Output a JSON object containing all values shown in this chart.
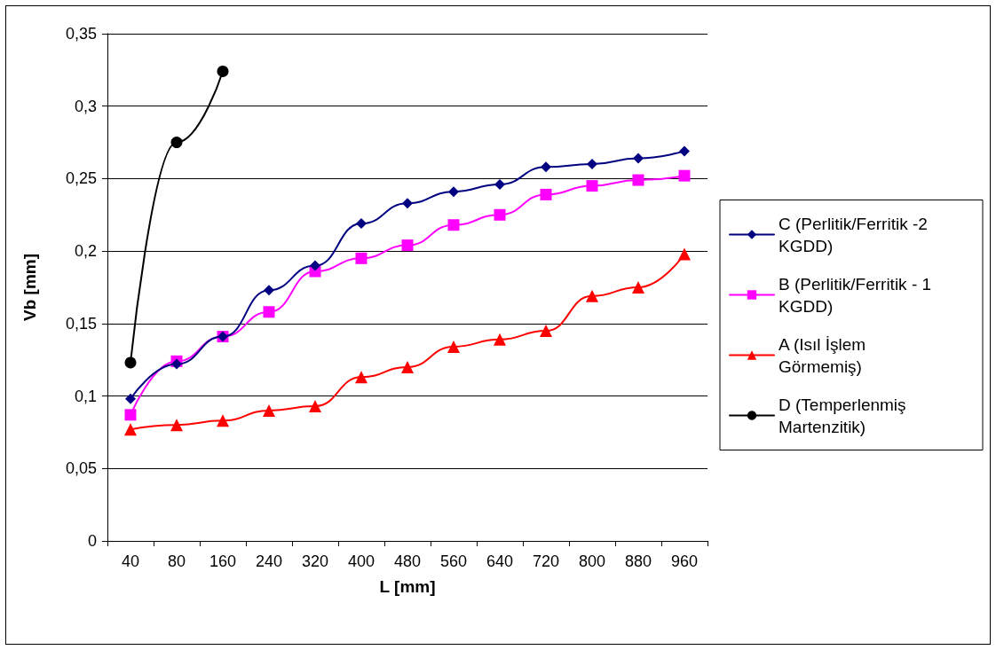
{
  "chart_data": {
    "type": "line",
    "xlabel": "L [mm]",
    "ylabel": "Vb [mm]",
    "categories": [
      "40",
      "80",
      "160",
      "240",
      "320",
      "400",
      "480",
      "560",
      "640",
      "720",
      "800",
      "880",
      "960"
    ],
    "series": [
      {
        "name": "C (Perlitik/Ferritik -2 KGDD)",
        "color": "#000080",
        "marker": "diamond",
        "values": [
          0.098,
          0.122,
          0.141,
          0.173,
          0.19,
          0.219,
          0.233,
          0.241,
          0.246,
          0.258,
          0.26,
          0.264,
          0.269
        ]
      },
      {
        "name": "B (Perlitik/Ferritik - 1 KGDD)",
        "color": "#ff00ff",
        "marker": "square",
        "values": [
          0.087,
          0.124,
          0.141,
          0.158,
          0.186,
          0.195,
          0.204,
          0.218,
          0.225,
          0.239,
          0.245,
          0.249,
          0.252
        ]
      },
      {
        "name": "A (Isıl İşlem Görmemiş)",
        "color": "#ff0000",
        "marker": "triangle",
        "values": [
          0.077,
          0.08,
          0.083,
          0.09,
          0.093,
          0.113,
          0.12,
          0.134,
          0.139,
          0.145,
          0.169,
          0.175,
          0.198
        ]
      },
      {
        "name": "D (Temperlenmiş Martenzitik)",
        "color": "#000000",
        "marker": "circle",
        "values": [
          0.123,
          0.275,
          0.324,
          null,
          null,
          null,
          null,
          null,
          null,
          null,
          null,
          null,
          null
        ]
      }
    ],
    "ylim": [
      0,
      0.35
    ],
    "yticks": [
      {
        "value": 0,
        "label": "0"
      },
      {
        "value": 0.05,
        "label": "0,05"
      },
      {
        "value": 0.1,
        "label": "0,1"
      },
      {
        "value": 0.15,
        "label": "0,15"
      },
      {
        "value": 0.2,
        "label": "0,2"
      },
      {
        "value": 0.25,
        "label": "0,25"
      },
      {
        "value": 0.3,
        "label": "0,3"
      },
      {
        "value": 0.35,
        "label": "0,35"
      }
    ],
    "grid": "y",
    "legend": "right",
    "line_style": "solid"
  }
}
